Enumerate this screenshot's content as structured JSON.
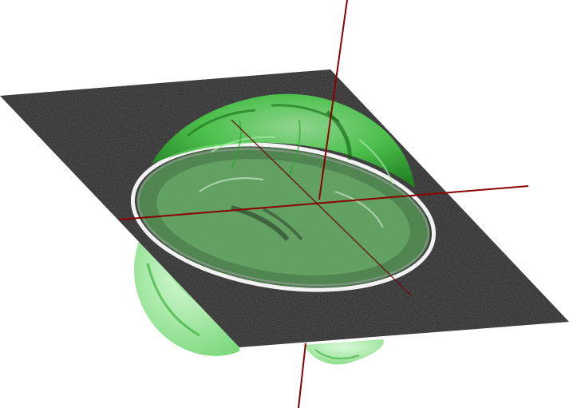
{
  "scene": {
    "background_color": "#ffffff",
    "volume_color": "#33cc33",
    "slice_plane_color": "#1c1c1c",
    "skull_outline_color": "#ffffff",
    "axis_color": "#8b0000",
    "icons": [
      "brain-surface",
      "axial-slice-plane",
      "skull-contour",
      "crosshair-axes"
    ]
  }
}
